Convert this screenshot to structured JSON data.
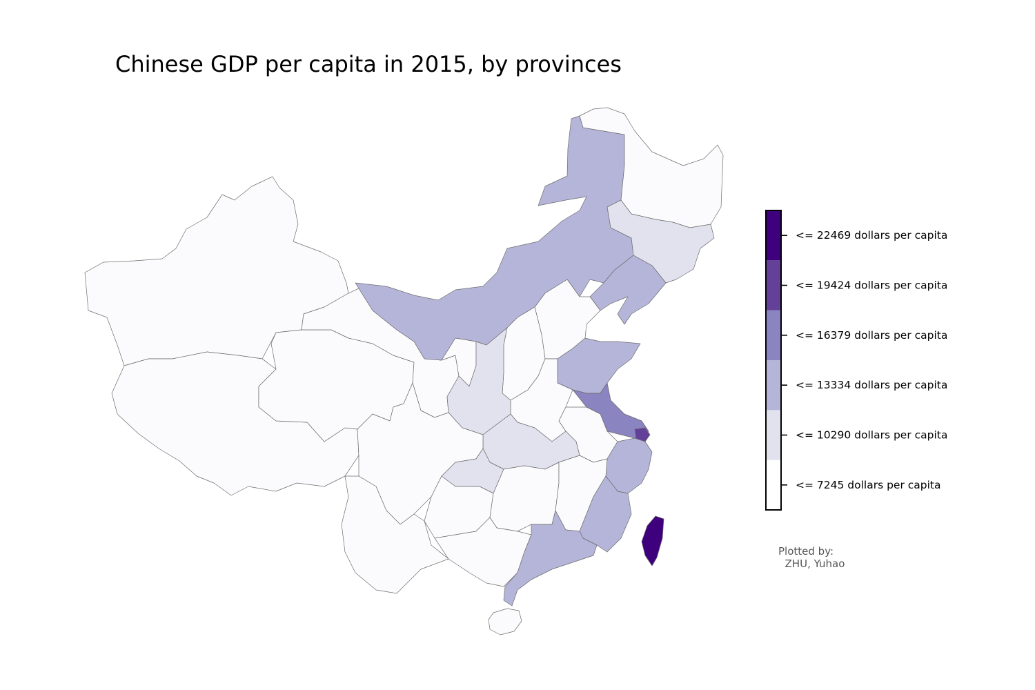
{
  "title": "Chinese GDP per capita in 2015, by provinces",
  "credit": {
    "line1": "Plotted by:",
    "line2": "  ZHU, Yuhao"
  },
  "colors": {
    "level0": "#fbfbfd",
    "level1": "#e2e2ef",
    "level2": "#b5b5d9",
    "level3": "#8a84c0",
    "level4": "#644199",
    "level5": "#3f007d",
    "border": "#6b6b6b"
  },
  "legend": {
    "bins": [
      {
        "label": "<= 7245 dollars per capita",
        "color": "#ffffff"
      },
      {
        "label": "<= 10290 dollars per capita",
        "color": "#e2e2ef"
      },
      {
        "label": "<= 13334 dollars per capita",
        "color": "#b5b5d9"
      },
      {
        "label": "<= 16379 dollars per capita",
        "color": "#8a84c0"
      },
      {
        "label": "<= 19424 dollars per capita",
        "color": "#644199"
      },
      {
        "label": "<= 22469 dollars per capita",
        "color": "#3f007d"
      }
    ]
  }
}
